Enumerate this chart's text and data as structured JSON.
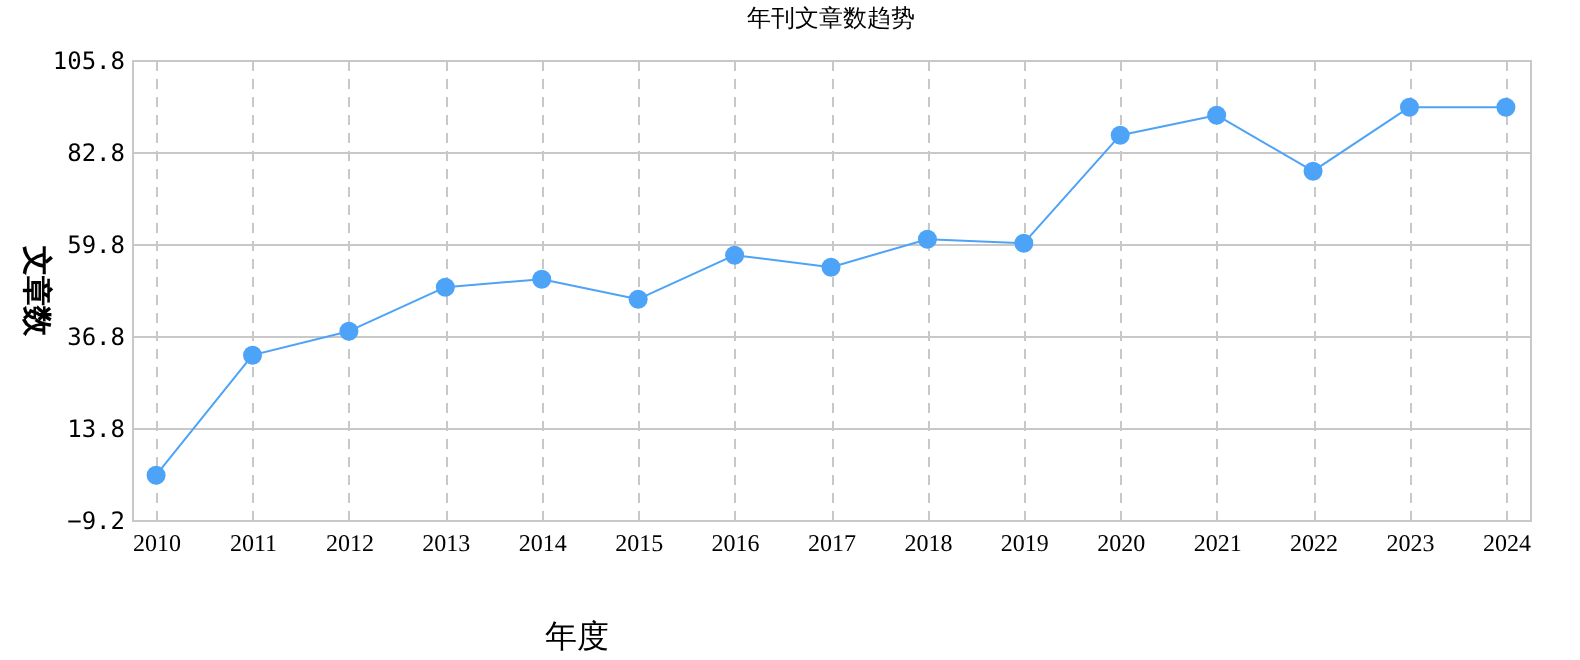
{
  "chart_data": {
    "type": "line",
    "title": "年刊文章数趋势",
    "xlabel": "年度",
    "ylabel": "文章数",
    "categories": [
      "2010",
      "2011",
      "2012",
      "2013",
      "2014",
      "2015",
      "2016",
      "2017",
      "2018",
      "2019",
      "2020",
      "2021",
      "2022",
      "2023",
      "2024"
    ],
    "series": [
      {
        "color": "#4da3f7",
        "values": [
          2,
          32,
          38,
          49,
          51,
          46,
          57,
          54,
          61,
          60,
          87,
          92,
          78,
          94,
          94
        ]
      }
    ],
    "ylim": [
      -9.2,
      105.8
    ],
    "yticks": [
      -9.2,
      13.8,
      36.8,
      59.8,
      82.8,
      105.8
    ],
    "grid": true,
    "marker": "circle",
    "line_style": "solid",
    "legend": false
  }
}
